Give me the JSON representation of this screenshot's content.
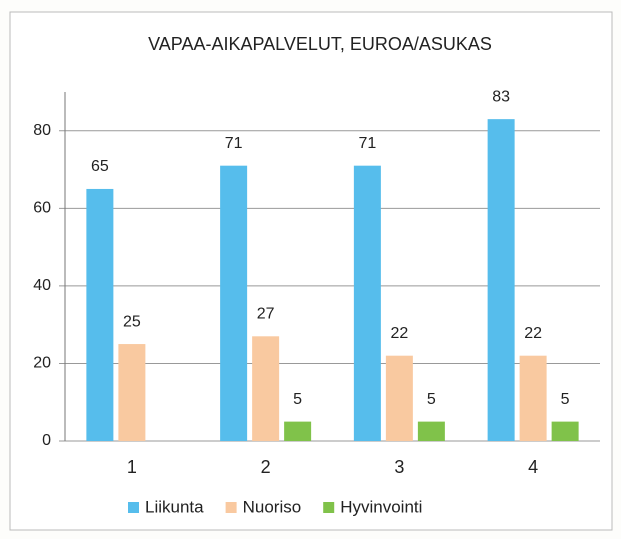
{
  "chart_data": {
    "type": "bar",
    "title": "VAPAA-AIKAPALVELUT, EUROA/ASUKAS",
    "categories": [
      "1",
      "2",
      "3",
      "4"
    ],
    "series": [
      {
        "name": "Liikunta",
        "color": "#56bdec",
        "values": [
          65,
          71,
          71,
          83
        ]
      },
      {
        "name": "Nuoriso",
        "color": "#f9c9a0",
        "values": [
          25,
          27,
          22,
          22
        ]
      },
      {
        "name": "Hyvinvointi",
        "color": "#80c24a",
        "values": [
          null,
          5,
          5,
          5
        ]
      }
    ],
    "ylim": [
      0,
      90
    ],
    "yticks": [
      0,
      20,
      40,
      60,
      80
    ],
    "grid": true,
    "legend": "bottom"
  }
}
